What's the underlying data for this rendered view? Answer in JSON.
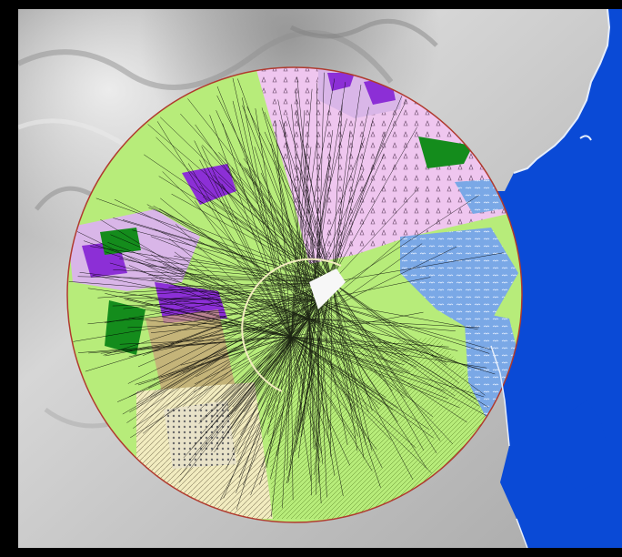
{
  "map": {
    "layers": [
      {
        "name": "terrain-hillshade",
        "color": "#b8b8b8"
      },
      {
        "name": "sea",
        "color": "#0a4ad6"
      },
      {
        "name": "viewshed-circle",
        "border_color": "#b03a2e"
      },
      {
        "name": "land-cover-purple",
        "color": "#8c2fd6"
      },
      {
        "name": "land-cover-lavender",
        "color": "#d9b6e8"
      },
      {
        "name": "land-cover-pink",
        "color": "#efc6ef"
      },
      {
        "name": "land-cover-light-green",
        "color": "#b7ec7a"
      },
      {
        "name": "land-cover-dark-green",
        "color": "#148c1c"
      },
      {
        "name": "land-cover-cream",
        "color": "#f2ecc0"
      },
      {
        "name": "land-cover-tan",
        "color": "#c8a27a"
      },
      {
        "name": "wetland-light-blue",
        "color": "#7aa8e6"
      },
      {
        "name": "sight-lines",
        "color": "#000000"
      }
    ]
  }
}
